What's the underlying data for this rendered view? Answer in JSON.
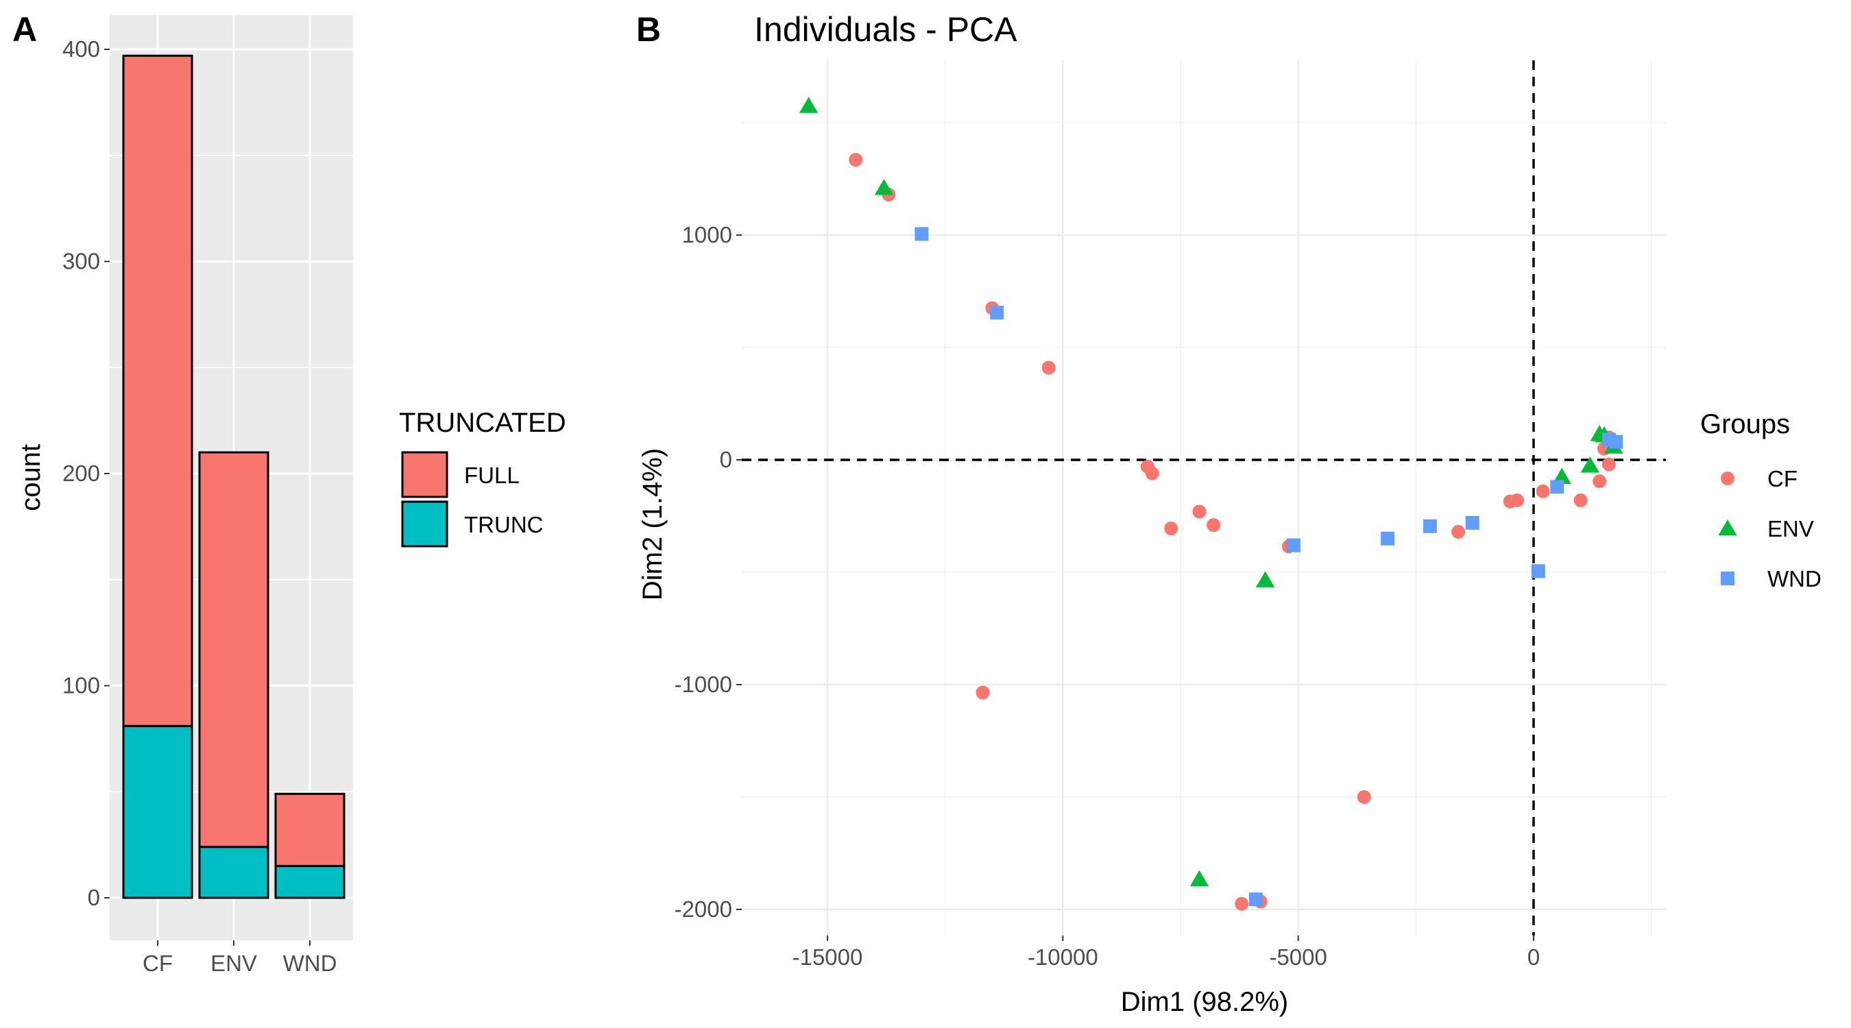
{
  "figure": {
    "panel_a_label": "A",
    "panel_b_label": "B"
  },
  "chart_data": [
    {
      "type": "bar",
      "stacked": true,
      "title": "",
      "xlabel": "",
      "ylabel": "count",
      "categories": [
        "CF",
        "ENV",
        "WND"
      ],
      "series": [
        {
          "name": "FULL",
          "values": [
            316,
            186,
            34
          ],
          "color": "#F8766D"
        },
        {
          "name": "TRUNC",
          "values": [
            81,
            24,
            15
          ],
          "color": "#00BFC4"
        }
      ],
      "ylim": [
        0,
        400
      ],
      "yticks": [
        0,
        100,
        200,
        300,
        400
      ],
      "legend": {
        "title": "TRUNCATED",
        "placement": "right"
      },
      "grid": true,
      "background": "#EBEBEB"
    },
    {
      "type": "scatter",
      "title": "Individuals - PCA",
      "xlabel": "Dim1 (98.2%)",
      "ylabel": "Dim2 (1.4%)",
      "xticks": [
        -15000,
        -10000,
        -5000,
        0
      ],
      "yticks": [
        -2000,
        -1000,
        0,
        1000
      ],
      "xlim": [
        -16200,
        2600
      ],
      "ylim": [
        -2080,
        1720
      ],
      "reference_lines": {
        "x": 0,
        "y": 0,
        "style": "dashed"
      },
      "grid": true,
      "legend": {
        "title": "Groups",
        "placement": "right"
      },
      "series": [
        {
          "name": "CF",
          "marker": "circle",
          "color": "#F8766D",
          "points": [
            [
              -14400,
              1335
            ],
            [
              -13700,
              1180
            ],
            [
              -11500,
              675
            ],
            [
              -10300,
              410
            ],
            [
              -8200,
              -30
            ],
            [
              -8100,
              -60
            ],
            [
              -7700,
              -305
            ],
            [
              -7100,
              -230
            ],
            [
              -6800,
              -290
            ],
            [
              -5200,
              -385
            ],
            [
              -11700,
              -1035
            ],
            [
              -3600,
              -1500
            ],
            [
              -6200,
              -1975
            ],
            [
              -5800,
              -1965
            ],
            [
              -1600,
              -320
            ],
            [
              -500,
              -185
            ],
            [
              -350,
              -180
            ],
            [
              200,
              -140
            ],
            [
              1000,
              -180
            ],
            [
              1400,
              -95
            ],
            [
              1600,
              -20
            ],
            [
              1500,
              50
            ],
            [
              1600,
              100
            ],
            [
              1700,
              60
            ]
          ]
        },
        {
          "name": "ENV",
          "marker": "triangle",
          "color": "#00BA38",
          "points": [
            [
              -15400,
              1575
            ],
            [
              -13800,
              1210
            ],
            [
              -5700,
              -535
            ],
            [
              -7100,
              -1865
            ],
            [
              600,
              -75
            ],
            [
              1200,
              -25
            ],
            [
              1400,
              115
            ],
            [
              1500,
              110
            ],
            [
              1700,
              60
            ]
          ]
        },
        {
          "name": "WND",
          "marker": "square",
          "color": "#619CFF",
          "points": [
            [
              -13000,
              1005
            ],
            [
              -11400,
              655
            ],
            [
              -5100,
              -380
            ],
            [
              -3100,
              -350
            ],
            [
              -2200,
              -295
            ],
            [
              -1300,
              -280
            ],
            [
              100,
              -495
            ],
            [
              500,
              -120
            ],
            [
              -5900,
              -1955
            ],
            [
              1600,
              90
            ],
            [
              1750,
              80
            ]
          ]
        }
      ]
    }
  ]
}
